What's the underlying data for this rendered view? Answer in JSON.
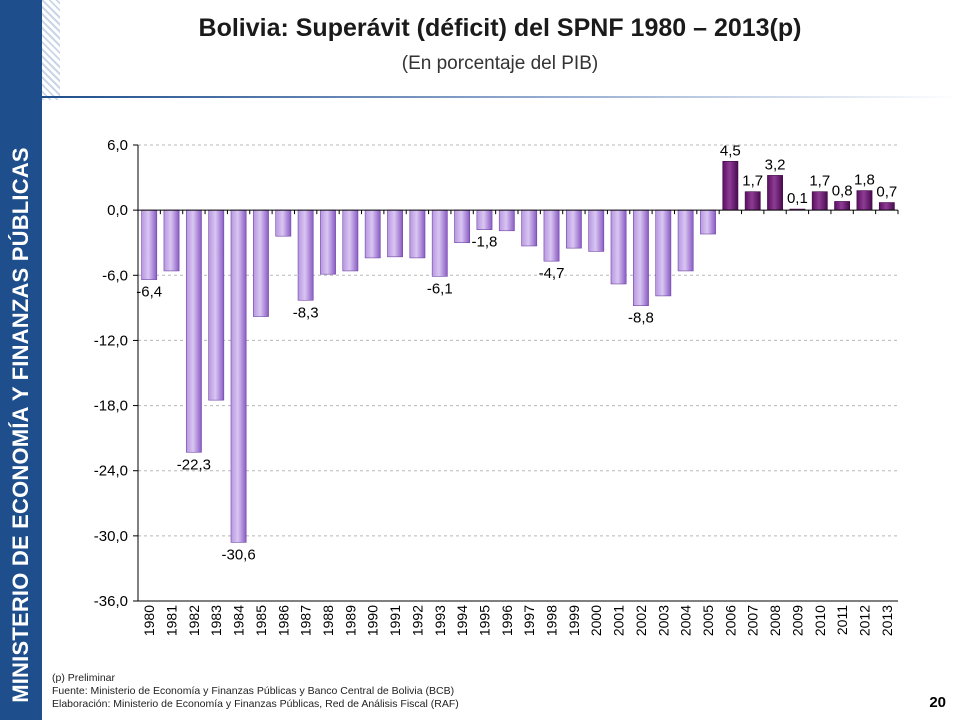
{
  "sidebar": {
    "text": "MINISTERIO DE ECONOMÍA Y FINANZAS PÚBLICAS"
  },
  "header": {
    "title": "Bolivia: Superávit (déficit) del SPNF 1980 – 2013(p)",
    "subtitle": "(En porcentaje del PIB)"
  },
  "colors": {
    "bar_fill_light": "#c8b0e6",
    "bar_fill_dark": "#8a5bc4",
    "bar_fill_positive": "#6a1a6e",
    "sidebar": "#1f4e8c"
  },
  "chart_data": {
    "type": "bar",
    "title": "Bolivia: Superávit (déficit) del SPNF 1980 – 2013(p)",
    "subtitle": "(En porcentaje del PIB)",
    "xlabel": "",
    "ylabel": "",
    "ylim": [
      -36,
      6
    ],
    "yticks": [
      "6,0",
      "0,0",
      "-6,0",
      "-12,0",
      "-18,0",
      "-24,0",
      "-30,0",
      "-36,0"
    ],
    "ytick_values": [
      6,
      0,
      -6,
      -12,
      -18,
      -24,
      -30,
      -36
    ],
    "grid": true,
    "categories": [
      "1980",
      "1981",
      "1982",
      "1983",
      "1984",
      "1985",
      "1986",
      "1987",
      "1988",
      "1989",
      "1990",
      "1991",
      "1992",
      "1993",
      "1994",
      "1995",
      "1996",
      "1997",
      "1998",
      "1999",
      "2000",
      "2001",
      "2002",
      "2003",
      "2004",
      "2005",
      "2006",
      "2007",
      "2008",
      "2009",
      "2010",
      "2011",
      "2012",
      "2013"
    ],
    "values": [
      -6.4,
      -5.6,
      -22.3,
      -17.5,
      -30.6,
      -9.8,
      -2.4,
      -8.3,
      -5.9,
      -5.6,
      -4.4,
      -4.3,
      -4.4,
      -6.1,
      -3.0,
      -1.8,
      -1.9,
      -3.3,
      -4.7,
      -3.5,
      -3.8,
      -6.8,
      -8.8,
      -7.9,
      -5.6,
      -2.2,
      4.5,
      1.7,
      3.2,
      0.1,
      1.7,
      0.8,
      1.8,
      0.7
    ],
    "data_labels": [
      {
        "index": 0,
        "text": "-6,4"
      },
      {
        "index": 2,
        "text": "-22,3"
      },
      {
        "index": 4,
        "text": "-30,6"
      },
      {
        "index": 7,
        "text": "-8,3"
      },
      {
        "index": 13,
        "text": "-6,1"
      },
      {
        "index": 15,
        "text": "-1,8"
      },
      {
        "index": 18,
        "text": "-4,7"
      },
      {
        "index": 22,
        "text": "-8,8"
      },
      {
        "index": 26,
        "text": "4,5"
      },
      {
        "index": 27,
        "text": "1,7"
      },
      {
        "index": 28,
        "text": "3,2"
      },
      {
        "index": 29,
        "text": "0,1"
      },
      {
        "index": 30,
        "text": "1,7"
      },
      {
        "index": 31,
        "text": "0,8"
      },
      {
        "index": 32,
        "text": "1,8"
      },
      {
        "index": 33,
        "text": "0,7"
      }
    ]
  },
  "footer": {
    "note": "(p) Preliminar",
    "source": "Fuente: Ministerio de Economía y Finanzas Públicas y Banco Central de Bolivia (BCB)",
    "elaboration": "Elaboración: Ministerio de Economía y Finanzas Públicas, Red de Análisis Fiscal (RAF)",
    "page_number": "20"
  }
}
